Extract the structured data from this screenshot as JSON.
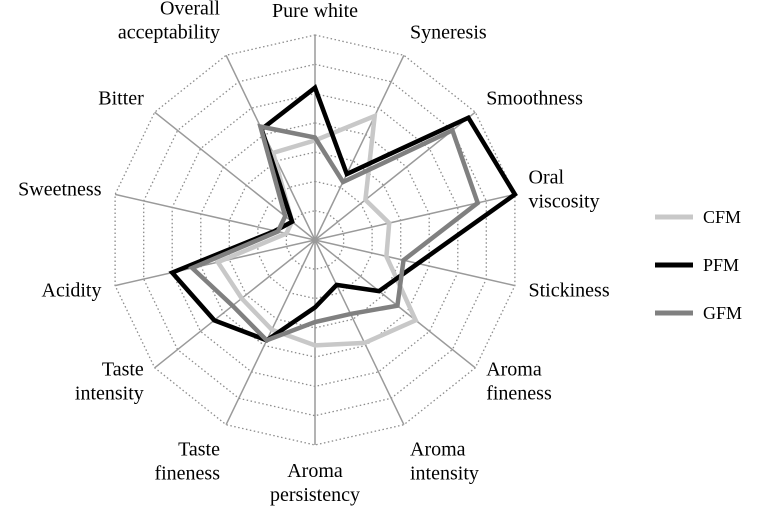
{
  "chart_data": {
    "type": "radar",
    "axes": [
      "Pure white",
      "Syneresis",
      "Smoothness",
      "Oral viscosity",
      "Stickiness",
      "Aroma fineness",
      "Aroma intensity",
      "Aroma persistency",
      "Taste fineness",
      "Taste intensity",
      "Acidity",
      "Sweetness",
      "Bitter",
      "Overall acceptability"
    ],
    "rlim": [
      0,
      7
    ],
    "rings": 7,
    "grid": true,
    "legend_position": "right",
    "series": [
      {
        "name": "CFM",
        "color": "#c8c8c8",
        "values": [
          3.4,
          4.7,
          2.2,
          2.6,
          2.5,
          4.4,
          3.9,
          3.6,
          3.4,
          3.2,
          3.4,
          1.0,
          1.0,
          3.3
        ]
      },
      {
        "name": "PFM",
        "color": "#000000",
        "values": [
          5.2,
          2.5,
          6.7,
          7.0,
          3.6,
          2.8,
          1.7,
          2.3,
          3.8,
          4.4,
          5.0,
          1.4,
          1.0,
          4.2
        ]
      },
      {
        "name": "GFM",
        "color": "#808080",
        "values": [
          3.5,
          2.2,
          6.0,
          5.7,
          3.1,
          3.6,
          2.8,
          2.8,
          3.8,
          3.6,
          4.3,
          1.3,
          1.3,
          4.3
        ]
      }
    ]
  }
}
